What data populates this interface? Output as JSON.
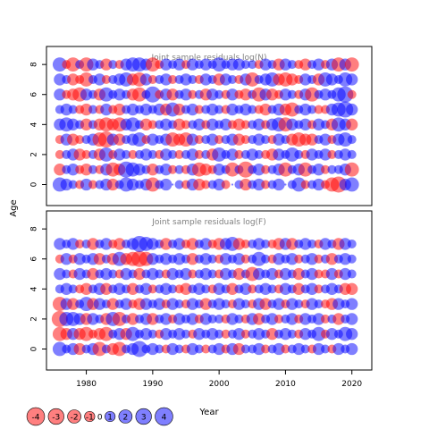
{
  "colors": {
    "positive": "#0000ff",
    "negative": "#ff0000",
    "frame": "#000000",
    "panel_title": "#808080"
  },
  "labels": {
    "ylabel": "Age",
    "xlabel": "Year"
  },
  "chart_data": [
    {
      "type": "scatter",
      "title": "Joint sample residuals log(N)",
      "ylabel": "Age",
      "xlim": [
        1974,
        2023
      ],
      "ylim": [
        -1.4,
        9.2
      ],
      "x_ticks": [
        1980,
        1990,
        2000,
        2010,
        2020
      ],
      "y_ticks": [
        0,
        2,
        4,
        6,
        8
      ],
      "x": [
        1976,
        1977,
        1978,
        1979,
        1980,
        1981,
        1982,
        1983,
        1984,
        1985,
        1986,
        1987,
        1988,
        1989,
        1990,
        1991,
        1992,
        1993,
        1994,
        1995,
        1996,
        1997,
        1998,
        1999,
        2000,
        2001,
        2002,
        2003,
        2004,
        2005,
        2006,
        2007,
        2008,
        2009,
        2010,
        2011,
        2012,
        2013,
        2014,
        2015,
        2016,
        2017,
        2018,
        2019,
        2020
      ],
      "ages": [
        0,
        1,
        2,
        3,
        4,
        5,
        6,
        7,
        8
      ],
      "residuals": [
        [
          3,
          2,
          1,
          -1,
          2,
          -1,
          1,
          2,
          -2,
          1,
          3,
          2,
          1,
          2,
          -3,
          1,
          2,
          0,
          1,
          -1,
          2,
          -2,
          -1,
          1,
          2,
          -1,
          0,
          1,
          -2,
          1,
          2,
          -1,
          1,
          2,
          0,
          1,
          3,
          -1,
          1,
          2,
          -1,
          -3,
          -4,
          2,
          3
        ],
        [
          -2,
          1,
          2,
          -1,
          -2,
          1,
          -1,
          2,
          -3,
          -2,
          4,
          3,
          2,
          1,
          -2,
          1,
          2,
          -1,
          1,
          -1,
          2,
          -3,
          -2,
          -1,
          2,
          1,
          -3,
          1,
          -4,
          1,
          2,
          -1,
          1,
          2,
          -3,
          1,
          2,
          -3,
          1,
          2,
          -1,
          1,
          1,
          2,
          -3
        ],
        [
          -1,
          1,
          2,
          -2,
          -1,
          1,
          -2,
          3,
          -1,
          2,
          1,
          -1,
          1,
          2,
          1,
          -1,
          2,
          1,
          -1,
          1,
          2,
          -1,
          1,
          -2,
          3,
          1,
          2,
          -1,
          1,
          2,
          1,
          -1,
          -2,
          2,
          1,
          3,
          1,
          -1,
          2,
          1,
          2,
          -1,
          1,
          2,
          1
        ],
        [
          -1,
          2,
          -2,
          -1,
          1,
          2,
          -3,
          -4,
          2,
          -2,
          1,
          2,
          3,
          -1,
          2,
          1,
          2,
          -3,
          -2,
          -3,
          2,
          -1,
          1,
          2,
          -1,
          1,
          2,
          -2,
          -1,
          1,
          2,
          1,
          -1,
          2,
          1,
          -2,
          -3,
          -2,
          -2,
          1,
          2,
          -1,
          2,
          3,
          1
        ],
        [
          2,
          3,
          2,
          1,
          -2,
          1,
          -2,
          -3,
          -2,
          -3,
          2,
          3,
          1,
          -2,
          -1,
          1,
          2,
          1,
          -2,
          -1,
          1,
          2,
          -1,
          2,
          1,
          2,
          -1,
          -2,
          -1,
          1,
          2,
          -1,
          2,
          3,
          -3,
          2,
          1,
          2,
          -1,
          2,
          1,
          -2,
          3,
          2,
          -2
        ],
        [
          1,
          2,
          1,
          -1,
          -2,
          1,
          -1,
          2,
          -1,
          -2,
          1,
          2,
          1,
          2,
          1,
          2,
          -2,
          3,
          -2,
          1,
          2,
          -1,
          1,
          2,
          1,
          -1,
          2,
          1,
          2,
          1,
          -1,
          -2,
          1,
          2,
          -2,
          -3,
          1,
          2,
          1,
          -1,
          -1,
          2,
          3,
          4,
          2
        ],
        [
          2,
          -1,
          -2,
          -3,
          2,
          1,
          -2,
          3,
          1,
          2,
          1,
          -2,
          -3,
          1,
          4,
          -1,
          2,
          -2,
          1,
          2,
          -1,
          1,
          -2,
          2,
          1,
          -1,
          2,
          -1,
          -2,
          1,
          -3,
          2,
          -2,
          -1,
          2,
          1,
          -1,
          2,
          -3,
          1,
          2,
          1,
          3,
          4,
          -1
        ],
        [
          2,
          1,
          -2,
          -1,
          -3,
          1,
          2,
          -1,
          1,
          2,
          3,
          -2,
          -3,
          2,
          -1,
          1,
          2,
          -1,
          1,
          2,
          1,
          -1,
          2,
          1,
          -2,
          2,
          1,
          -1,
          2,
          -3,
          1,
          2,
          3,
          -2,
          -3,
          -2,
          -1,
          2,
          1,
          -2,
          3,
          2,
          1,
          3,
          2
        ],
        [
          3,
          -1,
          -3,
          1,
          -3,
          2,
          1,
          -2,
          1,
          -1,
          2,
          3,
          3,
          2,
          -3,
          -1,
          2,
          1,
          2,
          -1,
          2,
          1,
          2,
          1,
          3,
          1,
          2,
          2,
          1,
          1,
          -1,
          2,
          1,
          -2,
          2,
          1,
          -1,
          -2,
          1,
          2,
          -1,
          2,
          -3,
          2,
          -3
        ]
      ]
    },
    {
      "type": "scatter",
      "title": "Joint sample residuals log(F)",
      "ylabel": "Age",
      "xlabel": "Year",
      "xlim": [
        1974,
        2023
      ],
      "ylim": [
        -1.4,
        9.2
      ],
      "x_ticks": [
        1980,
        1990,
        2000,
        2010,
        2020
      ],
      "y_ticks": [
        0,
        2,
        4,
        6,
        8
      ],
      "x": [
        1976,
        1977,
        1978,
        1979,
        1980,
        1981,
        1982,
        1983,
        1984,
        1985,
        1986,
        1987,
        1988,
        1989,
        1990,
        1991,
        1992,
        1993,
        1994,
        1995,
        1996,
        1997,
        1998,
        1999,
        2000,
        2001,
        2002,
        2003,
        2004,
        2005,
        2006,
        2007,
        2008,
        2009,
        2010,
        2011,
        2012,
        2013,
        2014,
        2015,
        2016,
        2017,
        2018,
        2019,
        2020
      ],
      "ages": [
        0,
        1,
        2,
        3,
        4,
        5,
        6,
        7
      ],
      "residuals": [
        [
          3,
          1,
          2,
          -2,
          1,
          2,
          -3,
          1,
          -2,
          -3,
          1,
          2,
          4,
          1,
          2,
          1,
          -1,
          2,
          1,
          -1,
          2,
          1,
          -1,
          1,
          2,
          -1,
          2,
          -2,
          1,
          1,
          2,
          -1,
          1,
          2,
          -1,
          1,
          2,
          1,
          -1,
          2,
          1,
          -1,
          2,
          1,
          2
        ],
        [
          -3,
          -2,
          2,
          -2,
          -3,
          -1,
          -2,
          -3,
          1,
          2,
          -2,
          3,
          1,
          2,
          1,
          -1,
          2,
          1,
          2,
          1,
          -1,
          2,
          1,
          2,
          1,
          -1,
          1,
          2,
          -1,
          1,
          2,
          1,
          -2,
          1,
          2,
          1,
          -1,
          2,
          1,
          3,
          -1,
          2,
          1,
          3,
          2
        ],
        [
          -4,
          3,
          3,
          2,
          -2,
          2,
          1,
          -2,
          3,
          -3,
          1,
          -2,
          1,
          2,
          -2,
          1,
          2,
          -1,
          2,
          1,
          2,
          -1,
          2,
          1,
          1,
          -1,
          2,
          1,
          -1,
          2,
          -2,
          1,
          2,
          -1,
          1,
          2,
          -1,
          2,
          1,
          2,
          -1,
          1,
          -2,
          1,
          2
        ],
        [
          -3,
          2,
          -2,
          1,
          3,
          -2,
          2,
          1,
          -2,
          1,
          2,
          -1,
          -2,
          2,
          1,
          2,
          -1,
          2,
          1,
          -1,
          2,
          1,
          -2,
          1,
          2,
          1,
          -1,
          2,
          1,
          -1,
          2,
          -2,
          1,
          2,
          -1,
          2,
          1,
          -1,
          2,
          1,
          -1,
          -2,
          2,
          1,
          2
        ],
        [
          1,
          2,
          1,
          -1,
          -2,
          1,
          2,
          -2,
          1,
          2,
          1,
          -2,
          1,
          2,
          -1,
          1,
          2,
          1,
          -1,
          -2,
          1,
          2,
          1,
          -1,
          2,
          1,
          -2,
          1,
          2,
          -1,
          1,
          2,
          1,
          -1,
          2,
          1,
          -2,
          1,
          2,
          -1,
          1,
          2,
          1,
          -2,
          -2
        ],
        [
          2,
          1,
          -1,
          2,
          1,
          -2,
          1,
          2,
          1,
          -1,
          2,
          1,
          -2,
          1,
          2,
          1,
          -1,
          2,
          1,
          2,
          -1,
          1,
          2,
          1,
          -1,
          2,
          1,
          -2,
          1,
          -3,
          2,
          1,
          2,
          -1,
          2,
          1,
          -2,
          1,
          2,
          -1,
          -1,
          2,
          -1,
          2,
          1
        ],
        [
          -1,
          2,
          -1,
          2,
          1,
          2,
          -2,
          1,
          -2,
          3,
          -2,
          -3,
          -4,
          -3,
          2,
          1,
          2,
          1,
          2,
          1,
          -2,
          1,
          2,
          1,
          -1,
          2,
          1,
          2,
          -1,
          1,
          3,
          1,
          -1,
          2,
          1,
          2,
          -1,
          1,
          2,
          -1,
          1,
          -2,
          1,
          2,
          1
        ],
        [
          2,
          1,
          2,
          -1,
          1,
          -2,
          1,
          2,
          -1,
          -2,
          1,
          2,
          4,
          3,
          2,
          1,
          -2,
          1,
          2,
          -1,
          -2,
          1,
          2,
          -1,
          -2,
          2,
          3,
          -2,
          -1,
          1,
          2,
          1,
          -1,
          -2,
          2,
          -2,
          1,
          2,
          1,
          -1,
          2,
          1,
          -2,
          2,
          1
        ]
      ]
    }
  ],
  "legend": {
    "values": [
      "-4",
      "-3",
      "-2",
      "-1",
      "0",
      "1",
      "2",
      "3",
      "4"
    ]
  }
}
